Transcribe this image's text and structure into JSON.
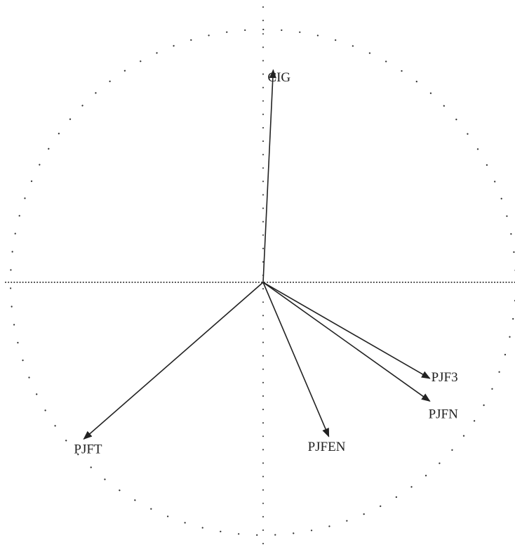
{
  "chart_data": {
    "type": "correlation-circle",
    "variables": [
      {
        "name": "CIG",
        "x": 0.04,
        "y": 0.84
      },
      {
        "name": "PJF3",
        "x": 0.66,
        "y": -0.38
      },
      {
        "name": "PJFN",
        "x": 0.66,
        "y": -0.47
      },
      {
        "name": "PJFEN",
        "x": 0.26,
        "y": -0.61
      },
      {
        "name": "PJFT",
        "x": -0.71,
        "y": -0.62
      }
    ],
    "xlim": [
      -1,
      1
    ],
    "ylim": [
      -1,
      1
    ],
    "color": "#222222"
  }
}
